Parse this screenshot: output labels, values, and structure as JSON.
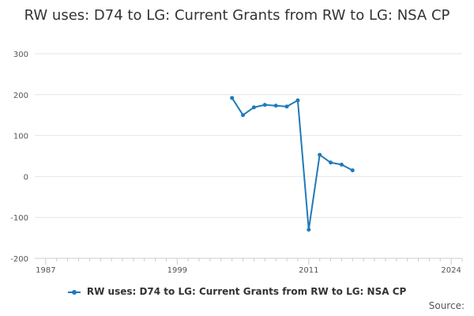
{
  "chart_data": {
    "type": "line",
    "title": "RW uses: D74 to LG: Current Grants from RW to LG: NSA CP",
    "xlabel": "",
    "ylabel": "",
    "xlim": [
      1986,
      2025
    ],
    "ylim": [
      -200,
      300
    ],
    "x_ticks": [
      1987,
      1999,
      2011,
      2024
    ],
    "y_ticks": [
      300,
      200,
      100,
      0,
      -100,
      -200
    ],
    "grid": "horizontal",
    "legend_position": "bottom",
    "series": [
      {
        "name": "RW uses: D74 to LG: Current Grants from RW to LG: NSA CP",
        "color": "#1f7ab8",
        "x": [
          2004,
          2005,
          2006,
          2007,
          2008,
          2009,
          2010,
          2011,
          2012,
          2013,
          2014,
          2015
        ],
        "y": [
          192,
          150,
          169,
          175,
          173,
          171,
          186,
          -130,
          53,
          34,
          29,
          15
        ]
      }
    ]
  },
  "source_label": "Source:"
}
